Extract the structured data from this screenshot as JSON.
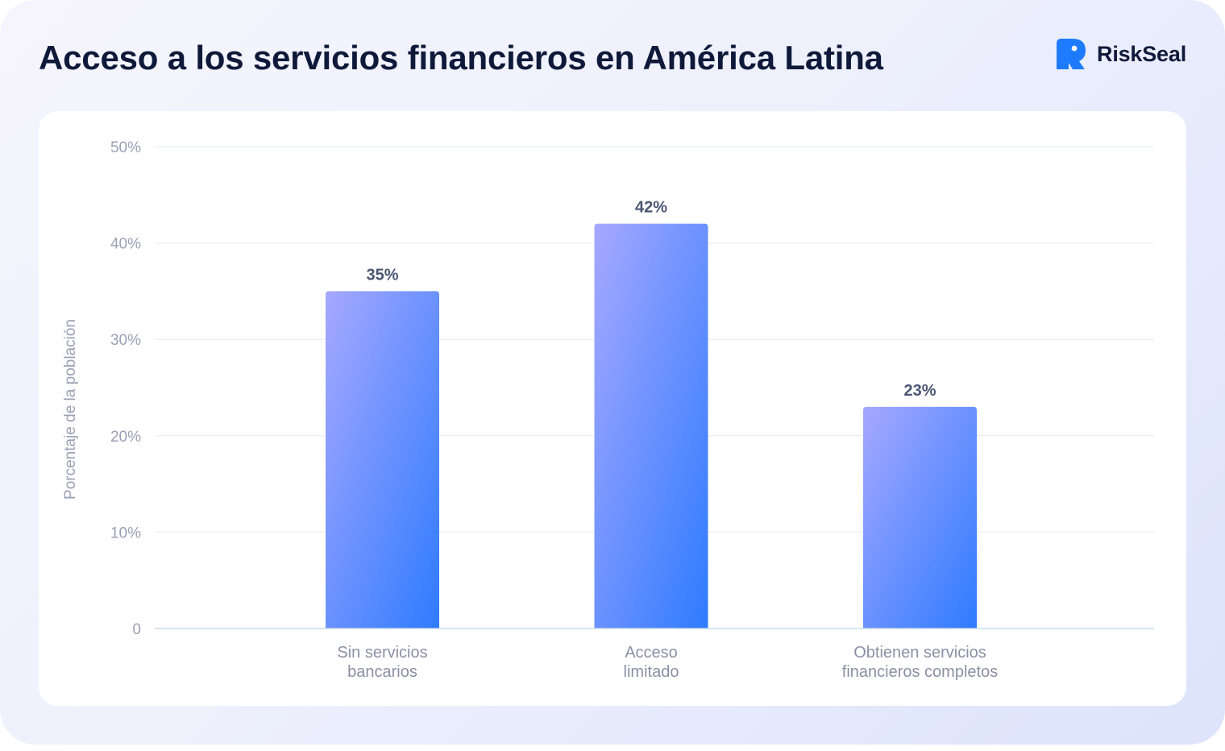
{
  "header": {
    "title": "Acceso a los servicios financieros en América Latina",
    "brand": "RiskSeal"
  },
  "colors": {
    "brand": "#1e7bff",
    "bar_top": "#a6a8ff",
    "bar_bottom": "#2f7bff",
    "title": "#0f1a3a"
  },
  "chart_data": {
    "type": "bar",
    "ylabel": "Porcentaje de la población",
    "ylim": [
      0,
      50
    ],
    "yticks": [
      {
        "value": 0,
        "label": "0"
      },
      {
        "value": 10,
        "label": "10%"
      },
      {
        "value": 20,
        "label": "20%"
      },
      {
        "value": 30,
        "label": "30%"
      },
      {
        "value": 40,
        "label": "40%"
      },
      {
        "value": 50,
        "label": "50%"
      }
    ],
    "grid": true,
    "categories": [
      [
        "Sin servicios",
        "bancarios"
      ],
      [
        "Acceso",
        "limitado"
      ],
      [
        "Obtienen servicios",
        "financieros completos"
      ]
    ],
    "values": [
      35,
      42,
      23
    ],
    "data_labels": [
      "35%",
      "42%",
      "23%"
    ]
  }
}
